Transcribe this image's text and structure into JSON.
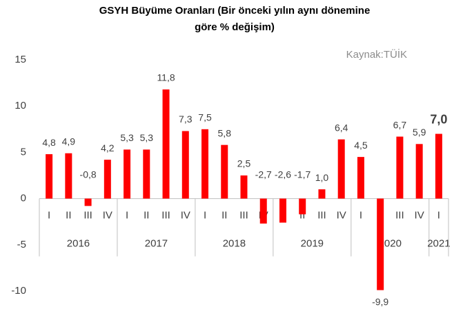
{
  "chart_data": {
    "type": "bar",
    "title": [
      "GSYH Büyüme Oranları (Bir önceki yılın aynı dönemine",
      "göre % değişim)"
    ],
    "annotation": "Kaynak:TÜİK",
    "categories": [
      "I",
      "II",
      "III",
      "IV",
      "I",
      "II",
      "III",
      "IV",
      "I",
      "II",
      "III",
      "IV",
      "I",
      "II",
      "III",
      "IV",
      "I",
      "II",
      "III",
      "IV",
      "I"
    ],
    "years": [
      "2016",
      "2017",
      "2018",
      "2019",
      "2020",
      "2021"
    ],
    "values": [
      4.8,
      4.9,
      -0.8,
      4.2,
      5.3,
      5.3,
      11.8,
      7.3,
      7.5,
      5.8,
      2.5,
      -2.7,
      -2.6,
      -1.7,
      1.0,
      6.4,
      4.5,
      -9.9,
      6.7,
      5.9,
      7.0
    ],
    "value_labels": [
      "4,8",
      "4,9",
      "-0,8",
      "4,2",
      "5,3",
      "5,3",
      "11,8",
      "7,3",
      "7,5",
      "5,8",
      "2,5",
      "-2,7",
      "-2,6",
      "-1,7",
      "1,0",
      "6,4",
      "4,5",
      "-9,9",
      "6,7",
      "5,9",
      "7,0"
    ],
    "color": "#ff0000",
    "ylim": [
      -10,
      15
    ],
    "yticks": [
      -10,
      -5,
      0,
      5,
      10,
      15
    ],
    "grid": false
  }
}
